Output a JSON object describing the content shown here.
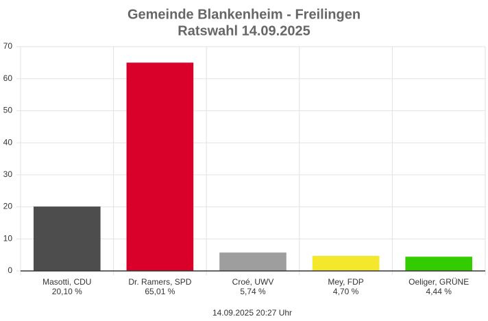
{
  "chart_data": {
    "type": "bar",
    "title": "Gemeinde Blankenheim - Freilingen",
    "subtitle": "Ratswahl 14.09.2025",
    "categories": [
      "Masotti, CDU",
      "Dr. Ramers, SPD",
      "Croé, UWV",
      "Mey, FDP",
      "Oeliger, GRÜNE"
    ],
    "values": [
      20.1,
      65.01,
      5.74,
      4.7,
      4.44
    ],
    "value_labels": [
      "20,10 %",
      "65,01 %",
      "5,74 %",
      "4,70 %",
      "4,44 %"
    ],
    "colors": [
      "#4d4d4d",
      "#d9002a",
      "#9e9e9e",
      "#f5e82c",
      "#33cc00"
    ],
    "ylim": [
      0,
      70
    ],
    "yticks": [
      0,
      10,
      20,
      30,
      40,
      50,
      60,
      70
    ],
    "grid": true,
    "footnote": "14.09.2025 20:27 Uhr"
  }
}
